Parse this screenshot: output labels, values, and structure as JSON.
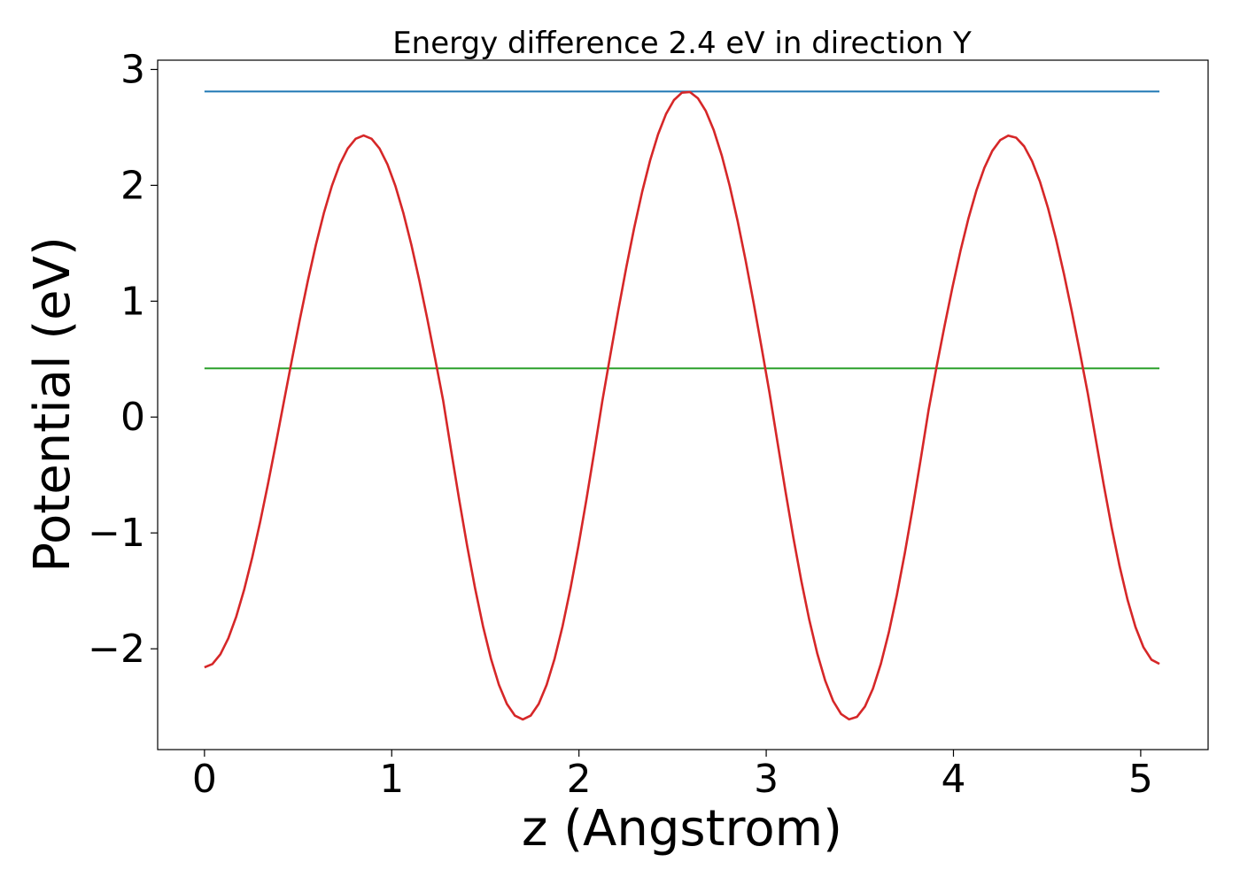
{
  "chart_data": {
    "type": "line",
    "title": "Energy difference 2.4 eV in direction Y",
    "xlabel": "z (Angstrom)",
    "ylabel": "Potential (eV)",
    "xlim": [
      -0.25,
      5.36
    ],
    "ylim": [
      -2.87,
      3.08
    ],
    "xticks": [
      0,
      1,
      2,
      3,
      4,
      5
    ],
    "xtick_labels": [
      "0",
      "1",
      "2",
      "3",
      "4",
      "5"
    ],
    "yticks": [
      -2,
      -1,
      0,
      1,
      2,
      3
    ],
    "ytick_labels": [
      "−2",
      "−1",
      "0",
      "1",
      "2",
      "3"
    ],
    "grid": false,
    "legend": "none",
    "series": [
      {
        "color": "#d62728",
        "x_range": [
          0,
          5.1
        ],
        "points": 121,
        "x": [
          0,
          0.425,
          0.85,
          1.275,
          1.7,
          2.125,
          2.575,
          3.025,
          3.45,
          3.875,
          4.3,
          4.725,
          5.1
        ],
        "y": [
          -2.16,
          0.14,
          2.43,
          0.14,
          -2.61,
          0.14,
          2.81,
          0.14,
          -2.61,
          0.14,
          2.43,
          0.14,
          -2.13
        ]
      },
      {
        "color": "#1f77b4",
        "x": [
          0,
          5.1
        ],
        "y": [
          2.81,
          2.81
        ]
      },
      {
        "color": "#2ca02c",
        "x": [
          0,
          5.1
        ],
        "y": [
          0.42,
          0.42
        ]
      }
    ]
  }
}
